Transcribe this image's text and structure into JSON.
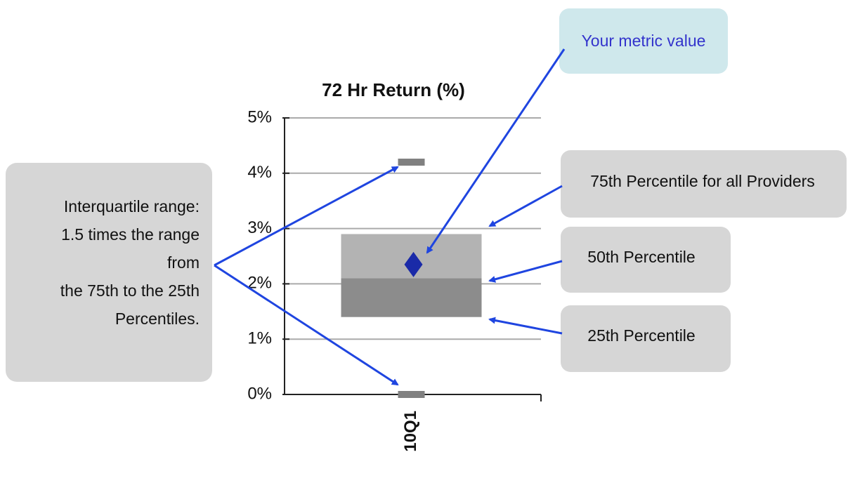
{
  "chart_data": {
    "type": "box",
    "title": "72 Hr Return (%)",
    "categories": [
      "10Q1"
    ],
    "ylim": [
      0,
      5
    ],
    "yticks": [
      {
        "value": 0,
        "label": "0%"
      },
      {
        "value": 1,
        "label": "1%"
      },
      {
        "value": 2,
        "label": "2%"
      },
      {
        "value": 3,
        "label": "3%"
      },
      {
        "value": 4,
        "label": "4%"
      },
      {
        "value": 5,
        "label": "5%"
      }
    ],
    "grid": true,
    "boxes": [
      {
        "low": 0,
        "q1": 1.4,
        "median": 2.1,
        "q3": 2.9,
        "high": 4.2,
        "metric": 2.35
      }
    ],
    "colors": {
      "lower": "#8c8c8c",
      "upper": "#b3b3b3",
      "whisker": "#808080",
      "metric": "#1a2aa8"
    },
    "annotations": {
      "metric": "Your metric value",
      "p75": "75th Percentile for all Providers",
      "p50": "50th Percentile",
      "p25": "25th Percentile",
      "iqr": [
        "Interquartile range:",
        "1.5 times the range",
        "from",
        "the 75th to the 25th",
        "Percentiles."
      ]
    }
  }
}
